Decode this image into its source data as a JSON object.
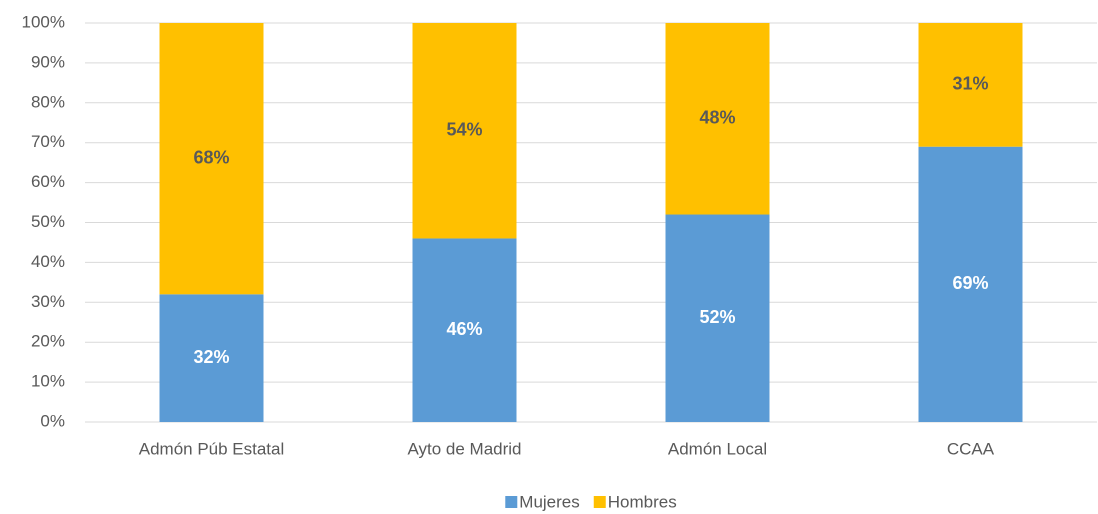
{
  "chart_data": {
    "type": "stacked_bar",
    "categories": [
      "Admón Púb Estatal",
      "Ayto de Madrid",
      "Admón Local",
      "CCAA"
    ],
    "series": [
      {
        "name": "Mujeres",
        "color": "#5b9bd5",
        "label_color": "#ffffff",
        "values": [
          32,
          46,
          52,
          69
        ],
        "value_labels": [
          "32%",
          "46%",
          "52%",
          "69%"
        ]
      },
      {
        "name": "Hombres",
        "color": "#ffc000",
        "label_color": "#595959",
        "values": [
          68,
          54,
          48,
          31
        ],
        "value_labels": [
          "68%",
          "54%",
          "48%",
          "31%"
        ]
      }
    ],
    "ylim": [
      0,
      100
    ],
    "yticks": [
      {
        "value": 0,
        "label": "0%"
      },
      {
        "value": 10,
        "label": "10%"
      },
      {
        "value": 20,
        "label": "20%"
      },
      {
        "value": 30,
        "label": "30%"
      },
      {
        "value": 40,
        "label": "40%"
      },
      {
        "value": 50,
        "label": "50%"
      },
      {
        "value": 60,
        "label": "60%"
      },
      {
        "value": 70,
        "label": "70%"
      },
      {
        "value": 80,
        "label": "80%"
      },
      {
        "value": 90,
        "label": "90%"
      },
      {
        "value": 100,
        "label": "100%"
      }
    ],
    "grid": true,
    "legend": "bottom"
  }
}
